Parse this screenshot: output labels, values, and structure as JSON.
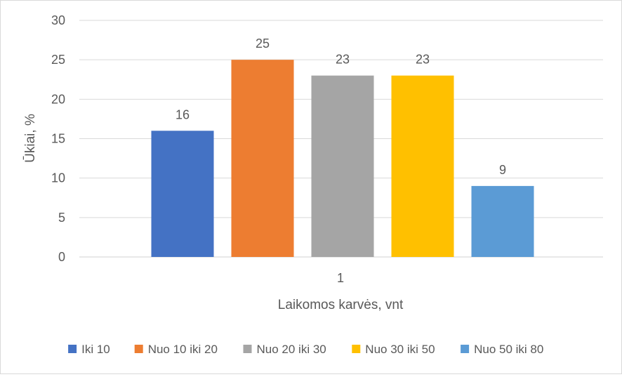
{
  "chart_data": {
    "type": "bar",
    "categories": [
      "1"
    ],
    "series": [
      {
        "name": "Iki 10",
        "values": [
          16
        ],
        "color": "#4472c4"
      },
      {
        "name": "Nuo 10 iki 20",
        "values": [
          25
        ],
        "color": "#ed7d31"
      },
      {
        "name": "Nuo 20 iki 30",
        "values": [
          23
        ],
        "color": "#a5a5a5"
      },
      {
        "name": "Nuo 30 iki 50",
        "values": [
          23
        ],
        "color": "#ffc000"
      },
      {
        "name": "Nuo 50 iki 80",
        "values": [
          9
        ],
        "color": "#5b9bd5"
      }
    ],
    "title": "",
    "xlabel": "Laikomos karvės, vnt",
    "ylabel": "Ūkiai, %",
    "ylim": [
      0,
      30
    ],
    "yticks": [
      0,
      5,
      10,
      15,
      20,
      25,
      30
    ],
    "grid": true,
    "legend_position": "bottom"
  }
}
